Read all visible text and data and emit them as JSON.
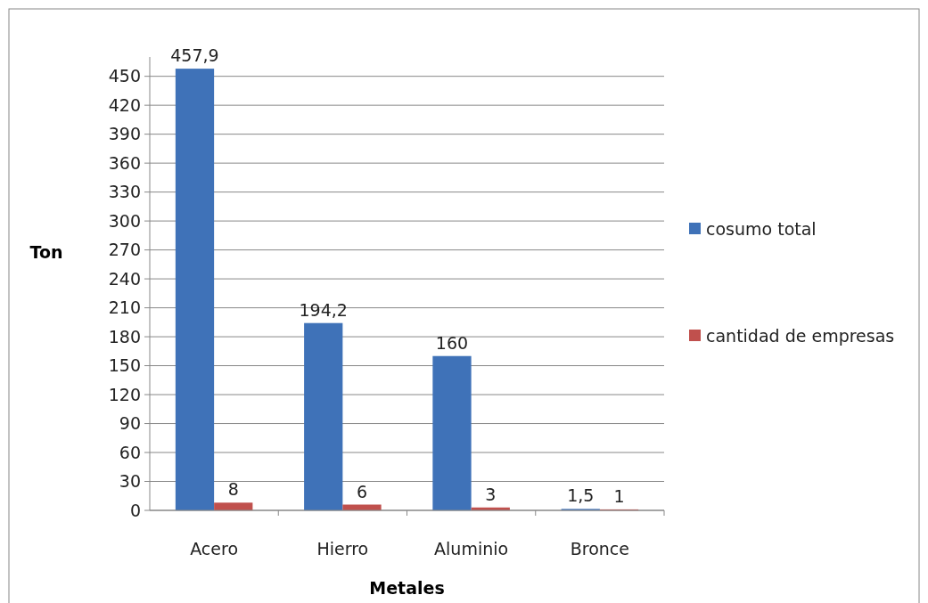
{
  "chart_data": {
    "type": "bar",
    "xlabel": "Metales",
    "ylabel": "Ton",
    "categories": [
      "Acero",
      "Hierro",
      "Aluminio",
      "Bronce"
    ],
    "series": [
      {
        "name": "cosumo total",
        "color": "#3f72b8",
        "values": [
          457.9,
          194.2,
          160,
          1.5
        ],
        "value_labels": [
          "457,9",
          "194,2",
          "160",
          "1,5"
        ]
      },
      {
        "name": "cantidad de empresas",
        "color": "#c0504d",
        "values": [
          8,
          6,
          3,
          1
        ],
        "value_labels": [
          "8",
          "6",
          "3",
          "1"
        ]
      }
    ],
    "ylim": [
      0,
      470
    ],
    "yticks": [
      0,
      30,
      60,
      90,
      120,
      150,
      180,
      210,
      240,
      270,
      300,
      330,
      360,
      390,
      420,
      450
    ],
    "grid": "y",
    "legend": "right"
  }
}
